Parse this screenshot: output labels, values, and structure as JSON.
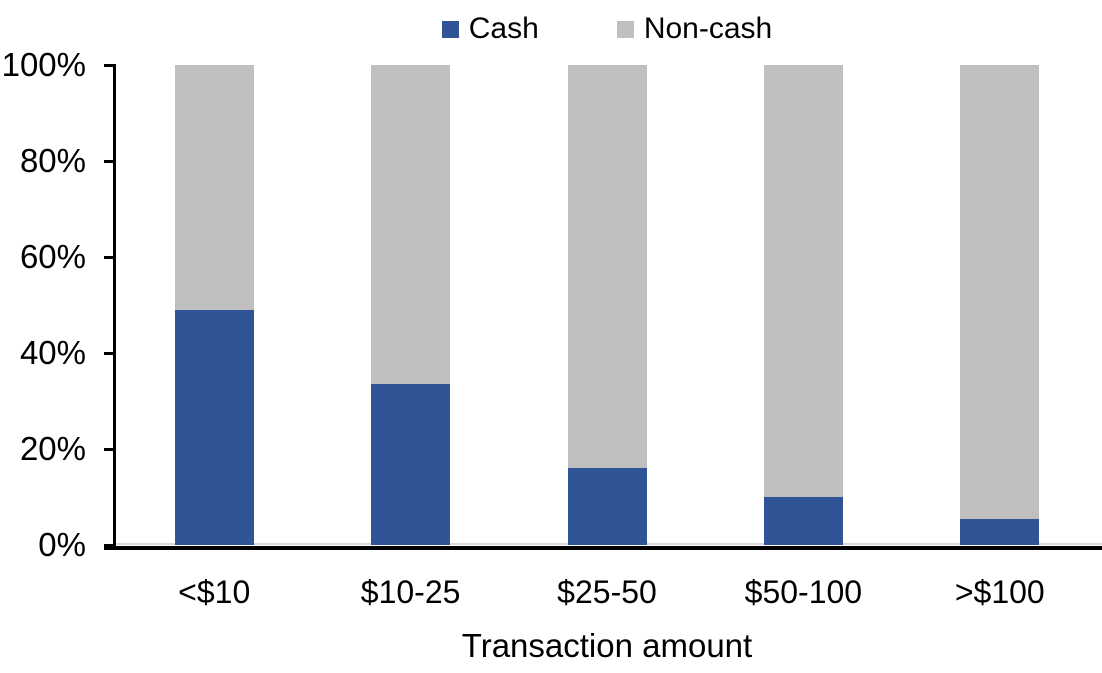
{
  "chart_data": {
    "type": "bar",
    "stacked": true,
    "percent_stacked": true,
    "title": "",
    "xlabel": "Transaction amount",
    "ylabel": "",
    "categories": [
      "<$10",
      "$10-25",
      "$25-50",
      "$50-100",
      ">$100"
    ],
    "series": [
      {
        "name": "Cash",
        "color": "#2F5597",
        "values": [
          49,
          33.5,
          16,
          10,
          5.5
        ]
      },
      {
        "name": "Non-cash",
        "color": "#BFBFBF",
        "values": [
          51,
          66.5,
          84,
          90,
          94.5
        ]
      }
    ],
    "ylim": [
      0,
      100
    ],
    "yticks": [
      {
        "value": 0,
        "label": "0%"
      },
      {
        "value": 20,
        "label": "20%"
      },
      {
        "value": 40,
        "label": "40%"
      },
      {
        "value": 60,
        "label": "60%"
      },
      {
        "value": 80,
        "label": "80%"
      },
      {
        "value": 100,
        "label": "100%"
      }
    ],
    "grid": false,
    "legend_position": "top-center"
  },
  "colors": {
    "axis_line": "#000000",
    "zero_baseline": "#D9D9D9",
    "text": "#000000",
    "background": "#FFFFFF"
  }
}
